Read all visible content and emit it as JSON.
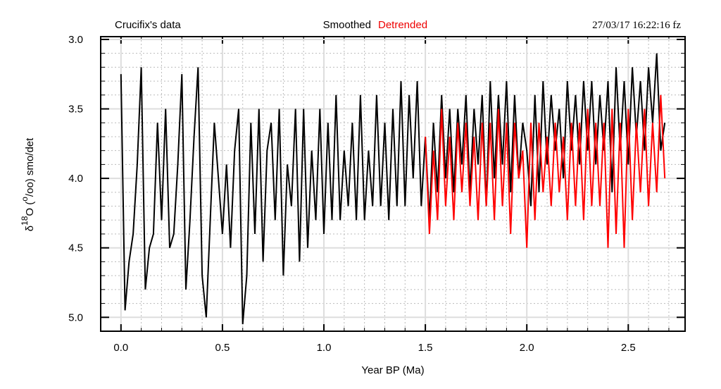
{
  "chart_data": {
    "type": "line",
    "title_left": "Crucifix's data",
    "timestamp": "27/03/17  16:22:16 fz",
    "xlabel": "Year BP (Ma)",
    "ylabel_parts": [
      "δ",
      "18",
      "O (",
      "o",
      "/oo) smo/det"
    ],
    "xlim": [
      -0.1,
      2.78
    ],
    "ylim": [
      5.1,
      2.98
    ],
    "xticks": [
      {
        "value": 0,
        "label": "0.0"
      },
      0.5,
      {
        "value": 1,
        "label": "1.0"
      },
      1.5,
      {
        "value": 2,
        "label": "2.0"
      },
      2.5
    ],
    "yticks": [
      {
        "value": 3,
        "label": "3.0"
      },
      3.5,
      {
        "value": 4,
        "label": "4.0"
      },
      4.5,
      {
        "value": 5,
        "label": "5.0"
      }
    ],
    "x_minor_ticks": [
      -0.1,
      0,
      0.1,
      0.2,
      0.3,
      0.4,
      0.5,
      0.6,
      0.7,
      0.8,
      0.9,
      1,
      1.1,
      1.2,
      1.3,
      1.4,
      1.5,
      1.6,
      1.7,
      1.8,
      1.9,
      2,
      2.1,
      2.2,
      2.3,
      2.4,
      2.5,
      2.6,
      2.7
    ],
    "y_minor_ticks": [
      3,
      3.1,
      3.2,
      3.3,
      3.4,
      3.5,
      3.6,
      3.7,
      3.8,
      3.9,
      4,
      4.1,
      4.2,
      4.3,
      4.4,
      4.5,
      4.6,
      4.7,
      4.8,
      4.9,
      5,
      5.1
    ],
    "grid": true,
    "series": [
      {
        "name": "Smoothed",
        "color": "#000000",
        "x": [
          0,
          0.02,
          0.04,
          0.06,
          0.08,
          0.1,
          0.12,
          0.14,
          0.16,
          0.18,
          0.2,
          0.22,
          0.24,
          0.26,
          0.28,
          0.3,
          0.32,
          0.34,
          0.36,
          0.38,
          0.4,
          0.42,
          0.44,
          0.46,
          0.48,
          0.5,
          0.52,
          0.54,
          0.56,
          0.58,
          0.6,
          0.62,
          0.64,
          0.66,
          0.68,
          0.7,
          0.72,
          0.74,
          0.76,
          0.78,
          0.8,
          0.82,
          0.84,
          0.86,
          0.88,
          0.9,
          0.92,
          0.94,
          0.96,
          0.98,
          1,
          1.02,
          1.04,
          1.06,
          1.08,
          1.1,
          1.12,
          1.14,
          1.16,
          1.18,
          1.2,
          1.22,
          1.24,
          1.26,
          1.28,
          1.3,
          1.32,
          1.34,
          1.36,
          1.38,
          1.4,
          1.42,
          1.44,
          1.46,
          1.48,
          1.5,
          1.52,
          1.54,
          1.56,
          1.58,
          1.6,
          1.62,
          1.64,
          1.66,
          1.68,
          1.7,
          1.72,
          1.74,
          1.76,
          1.78,
          1.8,
          1.82,
          1.84,
          1.86,
          1.88,
          1.9,
          1.92,
          1.94,
          1.96,
          1.98,
          2,
          2.02,
          2.04,
          2.06,
          2.08,
          2.1,
          2.12,
          2.14,
          2.16,
          2.18,
          2.2,
          2.22,
          2.24,
          2.26,
          2.28,
          2.3,
          2.32,
          2.34,
          2.36,
          2.38,
          2.4,
          2.42,
          2.44,
          2.46,
          2.48,
          2.5,
          2.52,
          2.54,
          2.56,
          2.58,
          2.6,
          2.62,
          2.64,
          2.66,
          2.68
        ],
        "values": [
          3.25,
          4.95,
          4.6,
          4.4,
          3.9,
          3.2,
          4.8,
          4.5,
          4.4,
          3.6,
          4.3,
          3.5,
          4.5,
          4.4,
          3.9,
          3.25,
          4.8,
          4.3,
          3.7,
          3.2,
          4.7,
          5.0,
          4.3,
          3.6,
          4.0,
          4.4,
          3.9,
          4.5,
          3.8,
          3.5,
          5.05,
          4.7,
          3.6,
          4.4,
          3.5,
          4.6,
          3.8,
          3.6,
          4.3,
          3.5,
          4.7,
          3.9,
          4.2,
          3.5,
          4.6,
          3.5,
          4.5,
          3.8,
          4.3,
          3.5,
          4.4,
          3.6,
          4.3,
          3.4,
          4.3,
          3.8,
          4.2,
          3.6,
          4.3,
          3.4,
          4.3,
          3.8,
          4.2,
          3.4,
          4.2,
          3.6,
          4.3,
          3.5,
          4.2,
          3.3,
          4.2,
          3.4,
          4.0,
          3.3,
          4.2,
          3.7,
          4.3,
          3.6,
          4.1,
          3.4,
          4.0,
          3.5,
          4.1,
          3.5,
          3.9,
          3.4,
          4.1,
          3.5,
          3.9,
          3.4,
          4.2,
          3.3,
          4.0,
          3.4,
          3.9,
          3.3,
          4.1,
          3.4,
          4.0,
          3.6,
          3.8,
          4.2,
          3.4,
          4.1,
          3.3,
          3.9,
          3.4,
          3.8,
          3.5,
          4.0,
          3.3,
          3.8,
          3.4,
          3.9,
          3.3,
          3.8,
          3.3,
          3.9,
          3.4,
          3.8,
          3.3,
          4.1,
          3.2,
          3.8,
          3.3,
          3.9,
          3.2,
          3.7,
          3.3,
          3.8,
          3.2,
          3.6,
          3.1,
          3.8,
          3.6
        ]
      },
      {
        "name": "Detrended",
        "color": "#ff0000",
        "x": [
          1.5,
          1.52,
          1.54,
          1.56,
          1.58,
          1.6,
          1.62,
          1.64,
          1.66,
          1.68,
          1.7,
          1.72,
          1.74,
          1.76,
          1.78,
          1.8,
          1.82,
          1.84,
          1.86,
          1.88,
          1.9,
          1.92,
          1.94,
          1.96,
          1.98,
          2,
          2.02,
          2.04,
          2.06,
          2.08,
          2.1,
          2.12,
          2.14,
          2.16,
          2.18,
          2.2,
          2.22,
          2.24,
          2.26,
          2.28,
          2.3,
          2.32,
          2.34,
          2.36,
          2.38,
          2.4,
          2.42,
          2.44,
          2.46,
          2.48,
          2.5,
          2.52,
          2.54,
          2.56,
          2.58,
          2.6,
          2.62,
          2.64,
          2.66,
          2.68
        ],
        "values": [
          3.7,
          4.4,
          3.8,
          4.3,
          3.5,
          4.2,
          3.7,
          4.3,
          3.6,
          4.1,
          3.6,
          4.2,
          3.7,
          4.3,
          3.6,
          4.2,
          3.6,
          4.3,
          3.5,
          4.2,
          3.6,
          4.4,
          3.6,
          4.0,
          3.8,
          4.5,
          3.6,
          4.3,
          3.6,
          4.1,
          3.7,
          4.2,
          3.6,
          4.1,
          3.7,
          4.3,
          3.6,
          4.2,
          3.6,
          4.3,
          3.5,
          4.2,
          3.6,
          4.2,
          3.6,
          4.5,
          3.5,
          4.4,
          3.6,
          4.5,
          3.5,
          4.3,
          3.6,
          4.1,
          3.5,
          4.2,
          3.6,
          4.1,
          3.4,
          4.0
        ]
      }
    ]
  }
}
